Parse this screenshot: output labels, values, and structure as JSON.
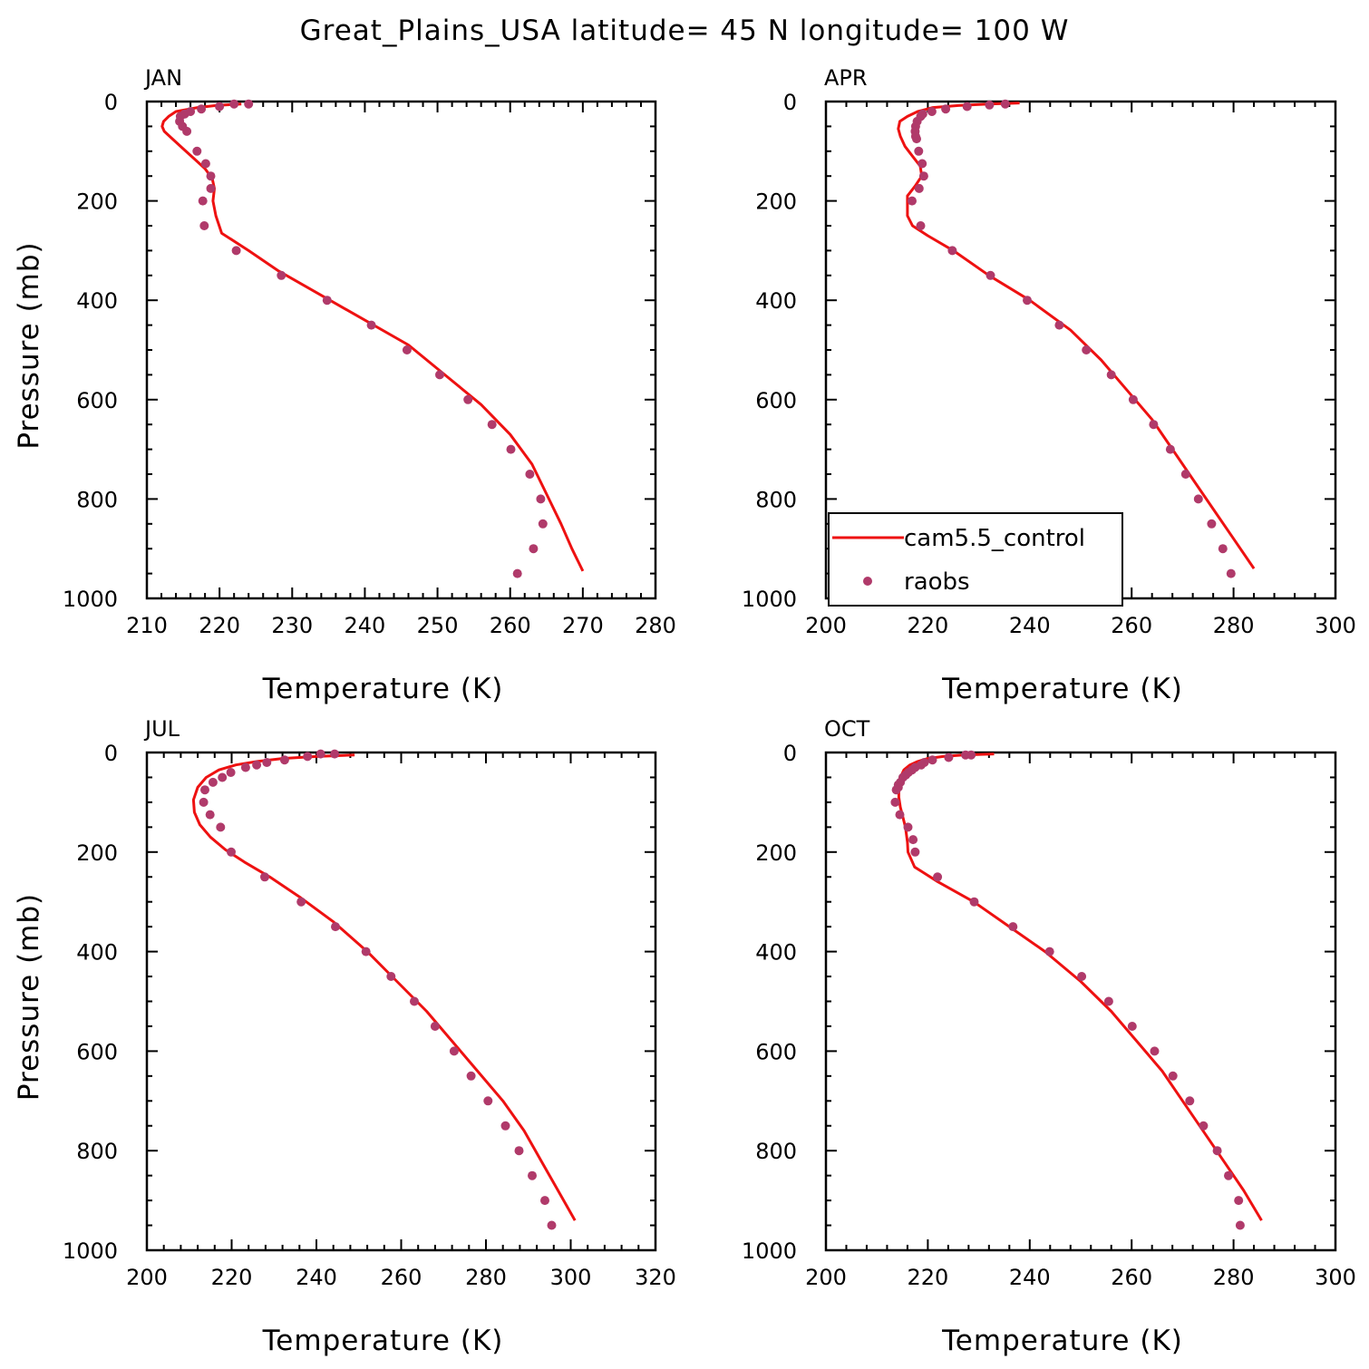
{
  "title": "Great_Plains_USA  latitude= 45 N longitude= 100 W",
  "colors": {
    "model": "#ee1111",
    "obs": "#b03a6a"
  },
  "legend": {
    "model_label": "cam5.5_control",
    "obs_label": "raobs",
    "panel": 1
  },
  "chart_data": [
    {
      "type": "line",
      "panel_label": "JAN",
      "xlabel": "Temperature (K)",
      "ylabel": "Pressure (mb)",
      "xlim": [
        210,
        280
      ],
      "ylim": [
        0,
        1000
      ],
      "y_inverted": true,
      "x_ticks": [
        210,
        220,
        230,
        240,
        250,
        260,
        270,
        280
      ],
      "y_ticks": [
        0,
        200,
        400,
        600,
        800,
        1000
      ],
      "series": [
        {
          "name": "cam5.5_control",
          "kind": "line",
          "x": [
            223,
            219.5,
            217,
            214,
            213,
            212.3,
            212.1,
            212.4,
            213.5,
            215,
            216.5,
            218,
            219,
            219.3,
            219.1,
            219.5,
            220.3,
            224,
            228,
            234,
            240,
            246,
            251,
            256,
            260,
            263,
            265,
            267,
            268.5,
            270
          ],
          "y": [
            5,
            8,
            12,
            20,
            30,
            40,
            50,
            60,
            75,
            95,
            115,
            135,
            155,
            175,
            200,
            230,
            265,
            300,
            340,
            390,
            440,
            490,
            550,
            610,
            670,
            730,
            790,
            850,
            900,
            945
          ]
        },
        {
          "name": "raobs",
          "kind": "scatter",
          "x": [
            224,
            222,
            220,
            217.5,
            216,
            215.2,
            214.6,
            214.5,
            214.9,
            215.5,
            216.9,
            218.1,
            218.8,
            218.8,
            217.7,
            217.9,
            222.3,
            228.5,
            234.8,
            240.9,
            245.8,
            250.3,
            254.2,
            257.5,
            260.1,
            262.7,
            264.2,
            264.5,
            263.2,
            261
          ],
          "y": [
            5,
            5,
            10,
            15,
            20,
            25,
            30,
            40,
            50,
            60,
            100,
            125,
            150,
            175,
            200,
            250,
            300,
            350,
            400,
            450,
            500,
            550,
            600,
            650,
            700,
            750,
            800,
            850,
            900,
            950
          ]
        }
      ]
    },
    {
      "type": "line",
      "panel_label": "APR",
      "xlabel": "Temperature (K)",
      "ylabel": "",
      "xlim": [
        200,
        300
      ],
      "ylim": [
        0,
        1000
      ],
      "y_inverted": true,
      "x_ticks": [
        200,
        220,
        240,
        260,
        280,
        300
      ],
      "y_ticks": [
        0,
        200,
        400,
        600,
        800,
        1000
      ],
      "series": [
        {
          "name": "cam5.5_control",
          "kind": "line",
          "x": [
            238,
            232,
            226,
            221,
            218,
            216,
            214.5,
            214.2,
            214.6,
            215.5,
            217,
            218.5,
            218.8,
            217.5,
            216,
            216,
            217,
            220,
            225,
            232,
            240,
            248,
            254,
            259,
            264,
            268,
            272,
            276,
            280,
            284
          ],
          "y": [
            3,
            5,
            8,
            12,
            20,
            30,
            40,
            55,
            70,
            90,
            110,
            130,
            150,
            170,
            190,
            230,
            250,
            270,
            300,
            350,
            400,
            460,
            520,
            580,
            640,
            700,
            760,
            820,
            880,
            940
          ]
        },
        {
          "name": "raobs",
          "kind": "scatter",
          "x": [
            235.2,
            232.1,
            227.7,
            223.5,
            220.8,
            219,
            218.6,
            217.9,
            217.6,
            217.5,
            217.6,
            217.8,
            218.2,
            218.9,
            219.2,
            218.3,
            216.9,
            218.6,
            224.8,
            232.3,
            239.5,
            245.8,
            251.1,
            256,
            260.3,
            264.3,
            267.6,
            270.6,
            273.1,
            275.7,
            277.9,
            279.5
          ],
          "y": [
            5,
            7,
            10,
            15,
            20,
            25,
            30,
            40,
            50,
            60,
            70,
            75,
            100,
            125,
            150,
            175,
            200,
            250,
            300,
            350,
            400,
            450,
            500,
            550,
            600,
            650,
            700,
            750,
            800,
            850,
            900,
            950
          ]
        }
      ]
    },
    {
      "type": "line",
      "panel_label": "JUL",
      "xlabel": "Temperature (K)",
      "ylabel": "Pressure (mb)",
      "xlim": [
        200,
        320
      ],
      "ylim": [
        0,
        1000
      ],
      "y_inverted": true,
      "x_ticks": [
        200,
        220,
        240,
        260,
        280,
        300,
        320
      ],
      "y_ticks": [
        0,
        200,
        400,
        600,
        800,
        1000
      ],
      "series": [
        {
          "name": "cam5.5_control",
          "kind": "line",
          "x": [
            249,
            240,
            232,
            226,
            221,
            217,
            214,
            212,
            211,
            211.2,
            212.5,
            215,
            218.5,
            223,
            229,
            236,
            244,
            252,
            259,
            266,
            272,
            278,
            284,
            289,
            293,
            297,
            301
          ],
          "y": [
            5,
            8,
            12,
            18,
            25,
            35,
            50,
            70,
            95,
            120,
            145,
            170,
            195,
            220,
            250,
            290,
            340,
            400,
            460,
            520,
            580,
            640,
            700,
            760,
            820,
            880,
            940
          ]
        },
        {
          "name": "raobs",
          "kind": "scatter",
          "x": [
            244.3,
            241,
            237.9,
            232.5,
            228.3,
            225.9,
            223.3,
            219.8,
            217.8,
            215.6,
            213.7,
            213.4,
            214.9,
            217.4,
            219.9,
            227.8,
            236.4,
            244.5,
            251.7,
            257.6,
            263.1,
            268,
            272.5,
            276.5,
            280.5,
            284.6,
            287.8,
            290.9,
            293.9,
            295.5
          ],
          "y": [
            3,
            3,
            8,
            15,
            20,
            25,
            30,
            40,
            50,
            60,
            75,
            100,
            125,
            150,
            200,
            250,
            300,
            350,
            400,
            450,
            500,
            550,
            600,
            650,
            700,
            750,
            800,
            850,
            900,
            950
          ]
        }
      ]
    },
    {
      "type": "line",
      "panel_label": "OCT",
      "xlabel": "Temperature (K)",
      "ylabel": "",
      "xlim": [
        200,
        300
      ],
      "ylim": [
        0,
        1000
      ],
      "y_inverted": true,
      "x_ticks": [
        200,
        220,
        240,
        260,
        280,
        300
      ],
      "y_ticks": [
        0,
        200,
        400,
        600,
        800,
        1000
      ],
      "series": [
        {
          "name": "cam5.5_control",
          "kind": "line",
          "x": [
            233,
            227,
            223,
            220,
            218,
            216.5,
            215.3,
            214.6,
            214.3,
            214.3,
            214.6,
            215.1,
            215.6,
            216,
            216.1,
            217.4,
            222,
            229,
            236,
            243,
            250,
            256,
            261,
            266,
            270,
            274,
            278,
            282,
            285.5
          ],
          "y": [
            3,
            5,
            8,
            12,
            18,
            25,
            35,
            50,
            70,
            90,
            110,
            130,
            150,
            180,
            200,
            230,
            260,
            300,
            350,
            400,
            460,
            520,
            580,
            640,
            700,
            760,
            820,
            880,
            940
          ]
        },
        {
          "name": "raobs",
          "kind": "scatter",
          "x": [
            228.5,
            227.4,
            224.1,
            220.9,
            219.3,
            218.7,
            217.5,
            216.9,
            216.2,
            215.7,
            215.1,
            214.6,
            214.2,
            214.2,
            213.8,
            213.6,
            214.5,
            216.1,
            217.1,
            217.5,
            221.9,
            229.1,
            236.7,
            243.9,
            250.2,
            255.5,
            260.1,
            264.5,
            268.1,
            271.4,
            274.1,
            276.8,
            279,
            281,
            281.3
          ],
          "y": [
            5,
            5,
            10,
            15,
            20,
            25,
            30,
            35,
            40,
            45,
            50,
            60,
            65,
            70,
            75,
            100,
            125,
            150,
            175,
            200,
            250,
            300,
            350,
            400,
            450,
            500,
            550,
            600,
            650,
            700,
            750,
            800,
            850,
            900,
            950
          ]
        }
      ]
    }
  ]
}
